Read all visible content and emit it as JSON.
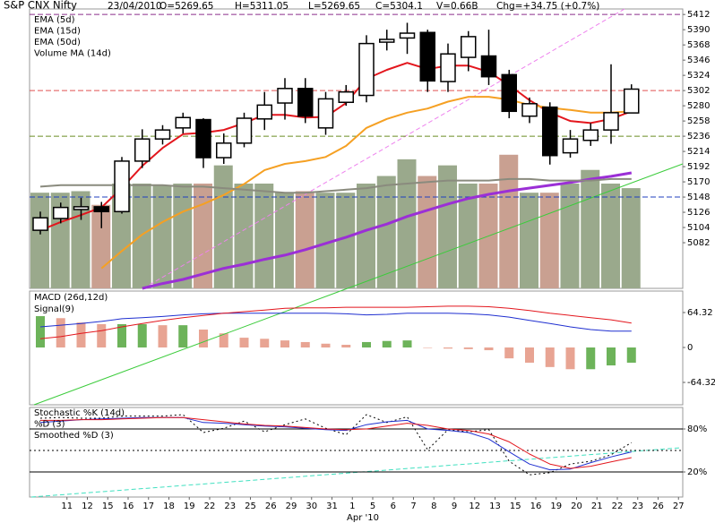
{
  "chart_data": {
    "type": "candlestick",
    "title": "S&P CNX Nifty",
    "header": [
      "23/04/2010",
      "O=5269.65",
      "H=5311.05",
      "L=5269.65",
      "C=5304.1",
      "V=0.66B",
      "Chg=+34.75 (+0.7%)"
    ],
    "categories": [
      null,
      "11",
      "12",
      "15",
      "16",
      "17",
      "18",
      "19",
      "22",
      "23",
      "25",
      "26",
      "29",
      "30",
      "31",
      "1",
      "5",
      "6",
      "7",
      "8",
      "9",
      "12",
      "13",
      "15",
      "16",
      "19",
      "20",
      "21",
      "22",
      "23",
      "26",
      "27"
    ],
    "month_label": "Apr '10",
    "open": [
      5100,
      5117,
      5130,
      5134,
      5127,
      5200,
      5232,
      5248,
      5260,
      5205,
      5226,
      5261,
      5284,
      5305,
      5248,
      5285,
      5295,
      5372,
      5378,
      5386,
      5315,
      5350,
      5352,
      5325,
      5265,
      5278,
      5212,
      5230,
      5245,
      5269.65,
      null,
      null
    ],
    "high": [
      5127,
      5140,
      5147,
      5141,
      5206,
      5246,
      5252,
      5270,
      5262,
      5240,
      5270,
      5300,
      5320,
      5320,
      5300,
      5310,
      5382,
      5390,
      5400,
      5390,
      5370,
      5388,
      5390,
      5332,
      5292,
      5285,
      5245,
      5255,
      5340,
      5311.05,
      null,
      null
    ],
    "low": [
      5094,
      5110,
      5115,
      5103,
      5124,
      5190,
      5224,
      5240,
      5190,
      5196,
      5220,
      5245,
      5260,
      5255,
      5238,
      5280,
      5285,
      5360,
      5355,
      5300,
      5300,
      5330,
      5310,
      5262,
      5255,
      5195,
      5205,
      5222,
      5225,
      5269.65,
      null,
      null
    ],
    "close": [
      5118,
      5133,
      5134,
      5127,
      5200,
      5232,
      5245,
      5263,
      5205,
      5226,
      5262,
      5281,
      5305,
      5265,
      5290,
      5300,
      5370,
      5376,
      5385,
      5316,
      5355,
      5380,
      5322,
      5272,
      5283,
      5208,
      5232,
      5245,
      5270,
      5304.1,
      null,
      null
    ],
    "up_color": "#ffffff",
    "down_color": "#000000",
    "ylim": [
      5016,
      5420
    ],
    "yticks": [
      5412,
      5390,
      5368,
      5346,
      5324,
      5302,
      5280,
      5258,
      5236,
      5214,
      5192,
      5170,
      5148,
      5126,
      5104,
      5082
    ],
    "volume": [
      0.63,
      0.63,
      0.64,
      0.55,
      0.69,
      0.69,
      0.68,
      0.69,
      0.69,
      0.81,
      0.69,
      0.69,
      0.63,
      0.64,
      0.63,
      0.63,
      0.69,
      0.74,
      0.85,
      0.74,
      0.81,
      0.69,
      0.69,
      0.88,
      0.63,
      0.63,
      0.69,
      0.78,
      0.69,
      0.66,
      null,
      null
    ],
    "vlim": [
      0,
      1.84
    ],
    "volume_up_color": "#9aa98c",
    "volume_down_color": "#c9a091",
    "overlays": [
      {
        "name": "EMA (5d)",
        "color": "#e3161d",
        "width": 2,
        "values": [
          5100,
          5112,
          5122,
          5133,
          5161,
          5193,
          5219,
          5239,
          5241,
          5245,
          5255,
          5267,
          5267,
          5263,
          5264,
          5284,
          5319,
          5332,
          5342,
          5333,
          5338,
          5338,
          5329,
          5310,
          5288,
          5270,
          5258,
          5255,
          5261,
          5272,
          null,
          null
        ]
      },
      {
        "name": "EMA (15d)",
        "color": "#f5a023",
        "width": 2,
        "values": [
          null,
          null,
          null,
          5045,
          5070,
          5094,
          5112,
          5127,
          5138,
          5151,
          5167,
          5187,
          5196,
          5200,
          5206,
          5222,
          5248,
          5261,
          5270,
          5276,
          5286,
          5293,
          5293,
          5289,
          5281,
          5277,
          5274,
          5270,
          5270,
          5272,
          null,
          null
        ]
      },
      {
        "name": "EMA (50d)",
        "color": "#9b2fd6",
        "width": 3,
        "values": [
          null,
          null,
          null,
          null,
          null,
          5016,
          5023,
          5029,
          5037,
          5045,
          5051,
          5058,
          5064,
          5072,
          5081,
          5090,
          5100,
          5109,
          5120,
          5129,
          5138,
          5146,
          5152,
          5157,
          5161,
          5165,
          5169,
          5174,
          5178,
          5183,
          null,
          null
        ]
      },
      {
        "name": "Volume MA (14d)",
        "color": "#8a8b7e",
        "width": 2,
        "axis": "volume",
        "values": [
          0.67,
          0.68,
          0.68,
          0.68,
          0.68,
          0.68,
          0.68,
          0.67,
          0.67,
          0.66,
          0.65,
          0.64,
          0.63,
          0.63,
          0.64,
          0.65,
          0.66,
          0.68,
          0.69,
          0.7,
          0.71,
          0.71,
          0.71,
          0.72,
          0.72,
          0.71,
          0.71,
          0.71,
          0.72,
          0.72,
          null,
          null
        ]
      }
    ],
    "levels": [
      {
        "value": 5412,
        "color": "#8b2f8b"
      },
      {
        "value": 5302,
        "color": "#e05050"
      },
      {
        "value": 5236,
        "color": "#6b8e23"
      },
      {
        "value": 5148,
        "color": "#1f3fbf"
      }
    ],
    "macd": {
      "series": [
        {
          "name": "MACD (26d,12d)",
          "color": "#1f2fd0",
          "values": [
            38,
            41,
            44,
            48,
            53,
            55,
            57,
            60,
            62,
            63,
            63,
            63,
            63,
            63,
            63,
            62,
            60,
            61,
            63,
            63,
            63,
            62,
            60,
            56,
            50,
            44,
            38,
            33,
            30,
            30,
            null,
            null
          ]
        },
        {
          "name": "Signal(9)",
          "color": "#e3161d",
          "values": [
            16,
            20,
            26,
            31,
            38,
            44,
            50,
            55,
            59,
            63,
            66,
            69,
            72,
            73,
            73,
            74,
            74,
            74,
            74,
            75,
            76,
            76,
            75,
            72,
            68,
            63,
            59,
            55,
            51,
            45,
            null,
            null
          ]
        }
      ],
      "histogram": [
        57.7,
        54,
        46,
        43,
        43,
        43,
        41,
        41,
        33,
        26,
        18,
        16,
        13,
        10,
        7,
        5,
        10,
        12,
        13,
        0,
        -2,
        -3,
        -5,
        -20,
        -28,
        -36,
        -40,
        -40,
        -33,
        -28,
        null,
        null
      ],
      "up_color": "#6db35a",
      "down_color": "#e8a493",
      "ylim": [
        -105.5,
        103.9
      ],
      "yticks": [
        64.32,
        0,
        -64.32
      ]
    },
    "stochastic": {
      "series": [
        {
          "name": "Stochastic %K (14d)",
          "color": "#000000",
          "dash": true,
          "values": [
            95,
            96,
            95,
            95,
            98,
            98,
            98,
            100,
            75,
            81,
            91,
            76,
            86,
            94,
            81,
            72,
            100,
            89,
            97,
            51,
            79,
            76,
            79,
            35,
            16,
            19,
            31,
            35,
            44,
            61,
            null,
            null
          ]
        },
        {
          "name": "%D (3)",
          "color": "#1f2fd0",
          "values": [
            89,
            91,
            93,
            94,
            95,
            96,
            96,
            96,
            89,
            88,
            86,
            84,
            83,
            81,
            79,
            78,
            86,
            90,
            92,
            80,
            78,
            75,
            66,
            48,
            31,
            23,
            24,
            33,
            41,
            48,
            null,
            null
          ]
        },
        {
          "name": "Smoothed %D (3)",
          "color": "#e3161d",
          "values": [
            92,
            92,
            93,
            93,
            94,
            95,
            96,
            96,
            93,
            90,
            87,
            85,
            84,
            82,
            80,
            79,
            80,
            84,
            88,
            85,
            80,
            78,
            73,
            62,
            45,
            31,
            25,
            28,
            34,
            40,
            null,
            null
          ]
        }
      ],
      "ylim": [
        -15,
        110
      ],
      "yticks": [
        {
          "value": 80,
          "label": "80%"
        },
        {
          "value": 20,
          "label": "20%"
        }
      ]
    }
  }
}
